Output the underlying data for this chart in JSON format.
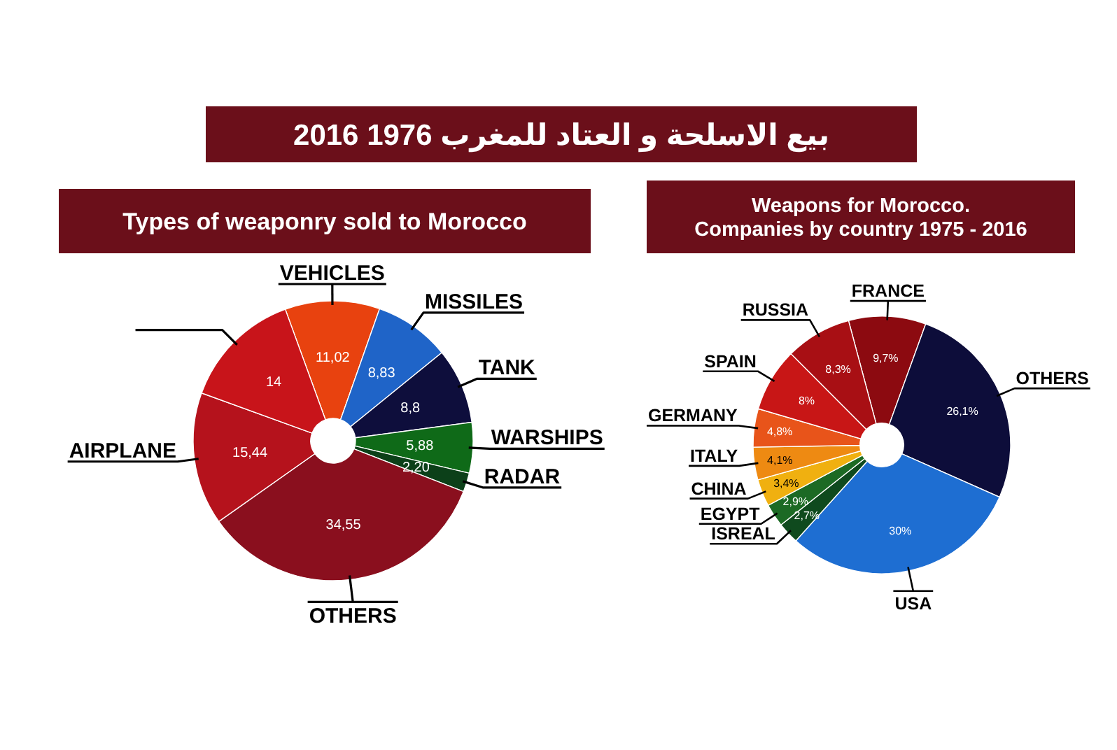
{
  "chart_data": [
    {
      "type": "donut",
      "title": "Types of weaponry sold to Morocco",
      "annotations": [
        "بيع الاسلحة و العتاد للمغرب 1976 2016"
      ],
      "categories": [
        "VEHICLES",
        "MISSILES",
        "TANK",
        "WARSHIPS",
        "RADAR",
        "OTHERS",
        "AIRPLANE",
        null
      ],
      "values": [
        11.02,
        8.83,
        8.8,
        5.88,
        2.2,
        34.55,
        15.44,
        14
      ],
      "value_labels": [
        "11,02",
        "8,83",
        "8,8",
        "5,88",
        "2,20",
        "34,55",
        "15,44",
        "14"
      ],
      "colors": [
        "#e8420f",
        "#1f64c8",
        "#0e0e3c",
        "#0f6a18",
        "#0c4019",
        "#8a0f1e",
        "#b5121c",
        "#c8141a"
      ]
    },
    {
      "type": "donut",
      "title": "Weapons for Morocco.",
      "subtitle": "Companies by country 1975 - 2016",
      "categories": [
        "FRANCE",
        "OTHERS",
        "USA",
        "ISREAL",
        "EGYPT",
        "CHINA",
        "ITALY",
        "GERMANY",
        "SPAIN",
        "RUSSIA"
      ],
      "values": [
        9.7,
        26.1,
        30,
        2.7,
        2.9,
        3.4,
        4.1,
        4.8,
        8,
        8.3
      ],
      "value_labels": [
        "9,7%",
        "26,1%",
        "30%",
        "2,7%",
        "2,9%",
        "3,4%",
        "4,1%",
        "4,8%",
        "8%",
        "8,3%"
      ],
      "colors": [
        "#8c0a10",
        "#0d0d3a",
        "#1e6ed2",
        "#0f4a1e",
        "#1c6a24",
        "#f0b010",
        "#ee8a12",
        "#e8541a",
        "#c81616",
        "#a80f14"
      ]
    }
  ]
}
